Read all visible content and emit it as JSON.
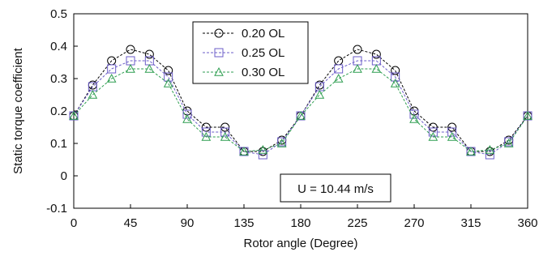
{
  "chart_data": {
    "type": "line",
    "title": "",
    "xlabel": "Rotor angle (Degree)",
    "ylabel": "Static torque coefficient",
    "xlim": [
      0,
      360
    ],
    "ylim": [
      -0.1,
      0.5
    ],
    "xticks": [
      0,
      45,
      90,
      135,
      180,
      225,
      270,
      315,
      360
    ],
    "yticks": [
      -0.1,
      0,
      0.1,
      0.2,
      0.3,
      0.4,
      0.5
    ],
    "grid": false,
    "legend_position": "top-center",
    "annotation": "U = 10.44 m/s",
    "x": [
      0,
      15,
      30,
      45,
      60,
      75,
      90,
      105,
      120,
      135,
      150,
      165,
      180,
      195,
      210,
      225,
      240,
      255,
      270,
      285,
      300,
      315,
      330,
      345,
      360
    ],
    "series": [
      {
        "name": "0.20 OL",
        "color": "#000000",
        "marker": "circle",
        "values": [
          0.185,
          0.28,
          0.355,
          0.39,
          0.375,
          0.325,
          0.2,
          0.15,
          0.15,
          0.075,
          0.075,
          0.11,
          0.185,
          0.28,
          0.355,
          0.39,
          0.375,
          0.325,
          0.2,
          0.15,
          0.15,
          0.075,
          0.075,
          0.11,
          0.185
        ]
      },
      {
        "name": "0.25 OL",
        "color": "#6b5cc8",
        "marker": "square",
        "values": [
          0.185,
          0.275,
          0.33,
          0.355,
          0.355,
          0.305,
          0.19,
          0.135,
          0.135,
          0.075,
          0.065,
          0.105,
          0.185,
          0.275,
          0.33,
          0.355,
          0.355,
          0.305,
          0.19,
          0.135,
          0.135,
          0.075,
          0.065,
          0.105,
          0.185
        ]
      },
      {
        "name": "0.30 OL",
        "color": "#2e9e50",
        "marker": "triangle",
        "values": [
          0.185,
          0.25,
          0.3,
          0.33,
          0.33,
          0.285,
          0.175,
          0.12,
          0.12,
          0.075,
          0.08,
          0.1,
          0.185,
          0.25,
          0.3,
          0.33,
          0.33,
          0.285,
          0.175,
          0.12,
          0.12,
          0.075,
          0.08,
          0.1,
          0.185
        ]
      }
    ]
  }
}
